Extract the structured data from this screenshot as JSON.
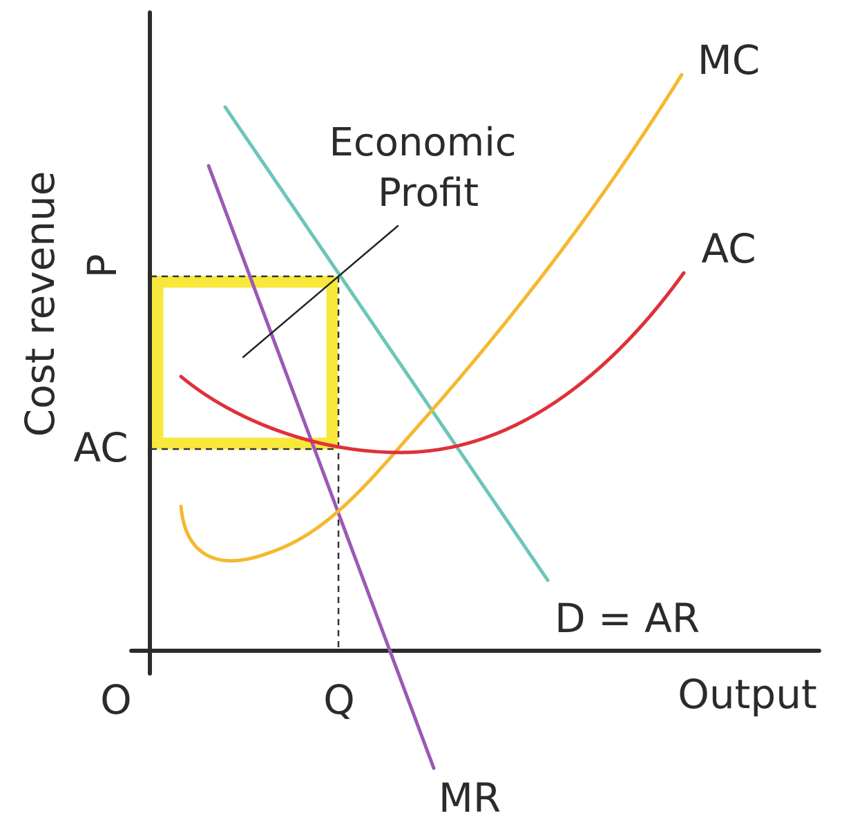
{
  "labels": {
    "y_axis": "Cost revenue",
    "x_axis": "Output",
    "origin": "O",
    "price": "P",
    "average_cost_level": "AC",
    "quantity": "Q",
    "mc_curve": "MC",
    "ac_curve": "AC",
    "demand_curve": "D = AR",
    "mr_curve": "MR",
    "profit_line1": "Economic",
    "profit_line2": "Profit"
  },
  "colors": {
    "axis": "#2b2b2b",
    "mc": "#f5b82e",
    "ac": "#e0303a",
    "demand": "#6cc5b8",
    "mr": "#9b59b6",
    "profit_box": "#f8e83c",
    "dashed": "#333333",
    "leader": "#222222"
  }
}
